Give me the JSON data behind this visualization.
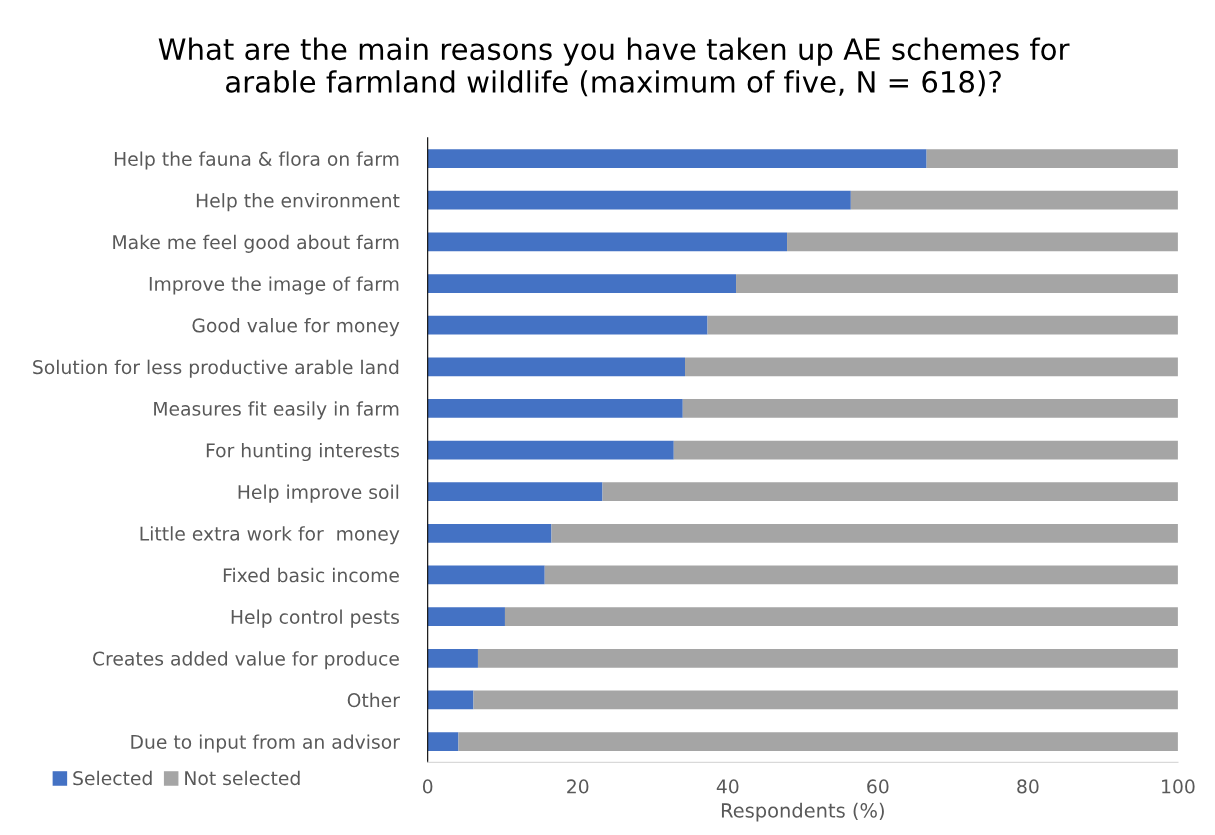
{
  "chart_data": {
    "type": "bar",
    "orientation": "horizontal",
    "stacked": true,
    "title": "What are the main reasons you have taken up AE schemes for\narable farmland wildlife (maximum of five, N = 618)?",
    "xlabel": "Respondents (%)",
    "categories": [
      "Help the fauna & flora on farm",
      "Help the environment",
      "Make me feel good about farm",
      "Improve the image of farm",
      "Good value for money",
      "Solution for less productive arable land",
      "Measures fit easily in farm",
      "For hunting interests",
      "Help improve soil",
      "Little extra work for  money",
      "Fixed basic income",
      "Help control pests",
      "Creates added value for produce",
      "Other",
      "Due to input from an advisor"
    ],
    "series": [
      {
        "name": "Selected",
        "color": "#4472c4",
        "values": [
          66.5,
          56.4,
          47.9,
          41.1,
          37.3,
          34.3,
          34.0,
          32.8,
          23.3,
          16.5,
          15.6,
          10.3,
          6.7,
          6.1,
          4.1
        ]
      },
      {
        "name": "Not selected",
        "color": "#a5a5a5",
        "values": [
          33.5,
          43.6,
          52.1,
          58.9,
          62.7,
          65.7,
          66.0,
          67.2,
          76.7,
          83.5,
          84.4,
          89.7,
          93.3,
          93.9,
          95.9
        ]
      }
    ],
    "xlim": [
      0,
      100
    ],
    "xticks": [
      0,
      20,
      40,
      60,
      80,
      100
    ],
    "grid": false,
    "legend": "bottom left"
  }
}
